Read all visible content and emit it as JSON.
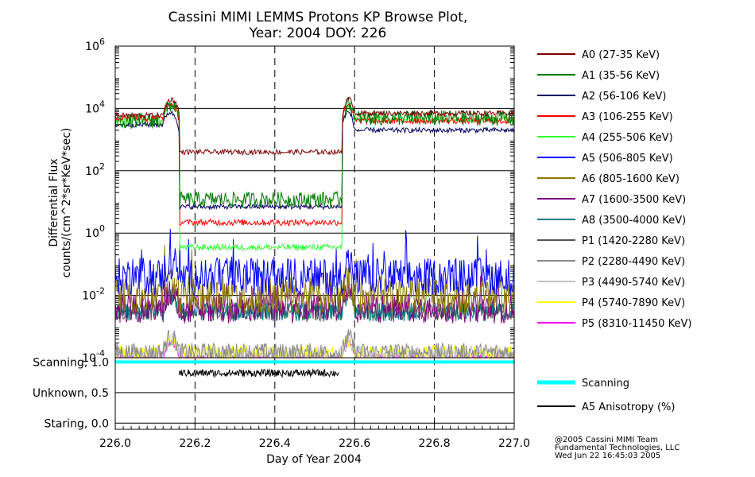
{
  "chart_data": {
    "type": "line",
    "title": "Cassini MIMI LEMMS Protons KP Browse Plot,",
    "subtitle": "Year: 2004 DOY: 226",
    "xlabel": "Day of Year 2004",
    "ylabel_line1": "Differential Flux",
    "ylabel_line2": "counts/(cm^2*sr*KeV*sec)",
    "xlim": [
      226.0,
      227.0
    ],
    "x_ticks": [
      226.0,
      226.2,
      226.4,
      226.6,
      226.8,
      227.0
    ],
    "x_tick_labels": [
      "226.0",
      "226.2",
      "226.4",
      "226.6",
      "226.8",
      "227.0"
    ],
    "y_scale": "log",
    "ylim": [
      0.0001,
      1000000
    ],
    "y_ticks": [
      {
        "base": "10",
        "exp": "-4",
        "value": 0.0001
      },
      {
        "base": "10",
        "exp": "-2",
        "value": 0.01
      },
      {
        "base": "10",
        "exp": "0",
        "value": 1
      },
      {
        "base": "10",
        "exp": "2",
        "value": 100
      },
      {
        "base": "10",
        "exp": "4",
        "value": 10000
      },
      {
        "base": "10",
        "exp": "6",
        "value": 1000000
      }
    ],
    "gaps": [
      [
        226.12,
        226.16
      ],
      [
        226.57,
        226.6
      ]
    ],
    "series": [
      {
        "name": "A0 (27-35 KeV)",
        "color": "#800000",
        "before": 6000,
        "middle": 400,
        "after": 7000,
        "noise": 0.08
      },
      {
        "name": "A1 (35-56 KeV)",
        "color": "#007a00",
        "before": 4000,
        "middle": 12,
        "after": 5000,
        "noise": 0.25
      },
      {
        "name": "A2 (56-106 KeV)",
        "color": "#000060",
        "before": 3000,
        "middle": 7,
        "after": 2000,
        "noise": 0.08
      },
      {
        "name": "A3 (106-255 KeV)",
        "color": "#ff0000",
        "before": 5000,
        "middle": 2.2,
        "after": 4000,
        "noise": 0.1
      },
      {
        "name": "A4 (255-506 KeV)",
        "color": "#33ff33",
        "before": 4000,
        "middle": 0.35,
        "after": 4500,
        "noise": 0.1
      },
      {
        "name": "A5 (506-805 KeV)",
        "color": "#0000ff",
        "before": 0.04,
        "middle": 0.04,
        "after": 0.04,
        "noise": 0.6
      },
      {
        "name": "A6 (805-1600 KeV)",
        "color": "#8b7a00",
        "before": 0.01,
        "middle": 0.01,
        "after": 0.01,
        "noise": 0.6
      },
      {
        "name": "A7 (1600-3500 KeV)",
        "color": "#800080",
        "before": 0.004,
        "middle": 0.004,
        "after": 0.004,
        "noise": 0.5
      },
      {
        "name": "A8 (3500-4000 KeV)",
        "color": "#007f7f",
        "before": 0.003,
        "middle": 0.003,
        "after": 0.003,
        "noise": 0.3
      },
      {
        "name": "P1 (1420-2280 KeV)",
        "color": "#555555",
        "before": 0.003,
        "middle": 0.003,
        "after": 0.003,
        "noise": 0.3
      },
      {
        "name": "P2 (2280-4490 KeV)",
        "color": "#888888",
        "before": 0.00015,
        "middle": 0.00015,
        "after": 0.00015,
        "noise": 0.3
      },
      {
        "name": "P3 (4490-5740 KeV)",
        "color": "#c0c0c0",
        "before": 0.00012,
        "middle": 0.00012,
        "after": 0.00012,
        "noise": 0.3
      },
      {
        "name": "P4 (5740-7890 KeV)",
        "color": "#ffff00",
        "before": 0.00013,
        "middle": 0.00013,
        "after": 0.00013,
        "noise": 0.3
      },
      {
        "name": "P5 (8310-11450 KeV)",
        "color": "#ff00ff",
        "before": 0.0001,
        "middle": 0.0001,
        "after": 0.0001,
        "noise": 0.1
      }
    ],
    "lower_panel": {
      "y_tick_labels": [
        "Scanning, 1.0",
        "Unknown, 0.5",
        "Staring, 0.0"
      ],
      "y_tick_values": [
        1.0,
        0.5,
        0.0
      ],
      "series": [
        {
          "name": "Scanning",
          "color": "#00ffff",
          "value": 1.0
        },
        {
          "name": "A5 Anisotropy (%)",
          "color": "#000000",
          "range": [
            226.16,
            226.56
          ],
          "level": 0.82,
          "noise": 0.06
        }
      ]
    },
    "credits": [
      "@2005 Cassini MIMI Team",
      "Fundamental Technologies, LLC",
      "Wed Jun 22 16:45:03 2005"
    ]
  }
}
